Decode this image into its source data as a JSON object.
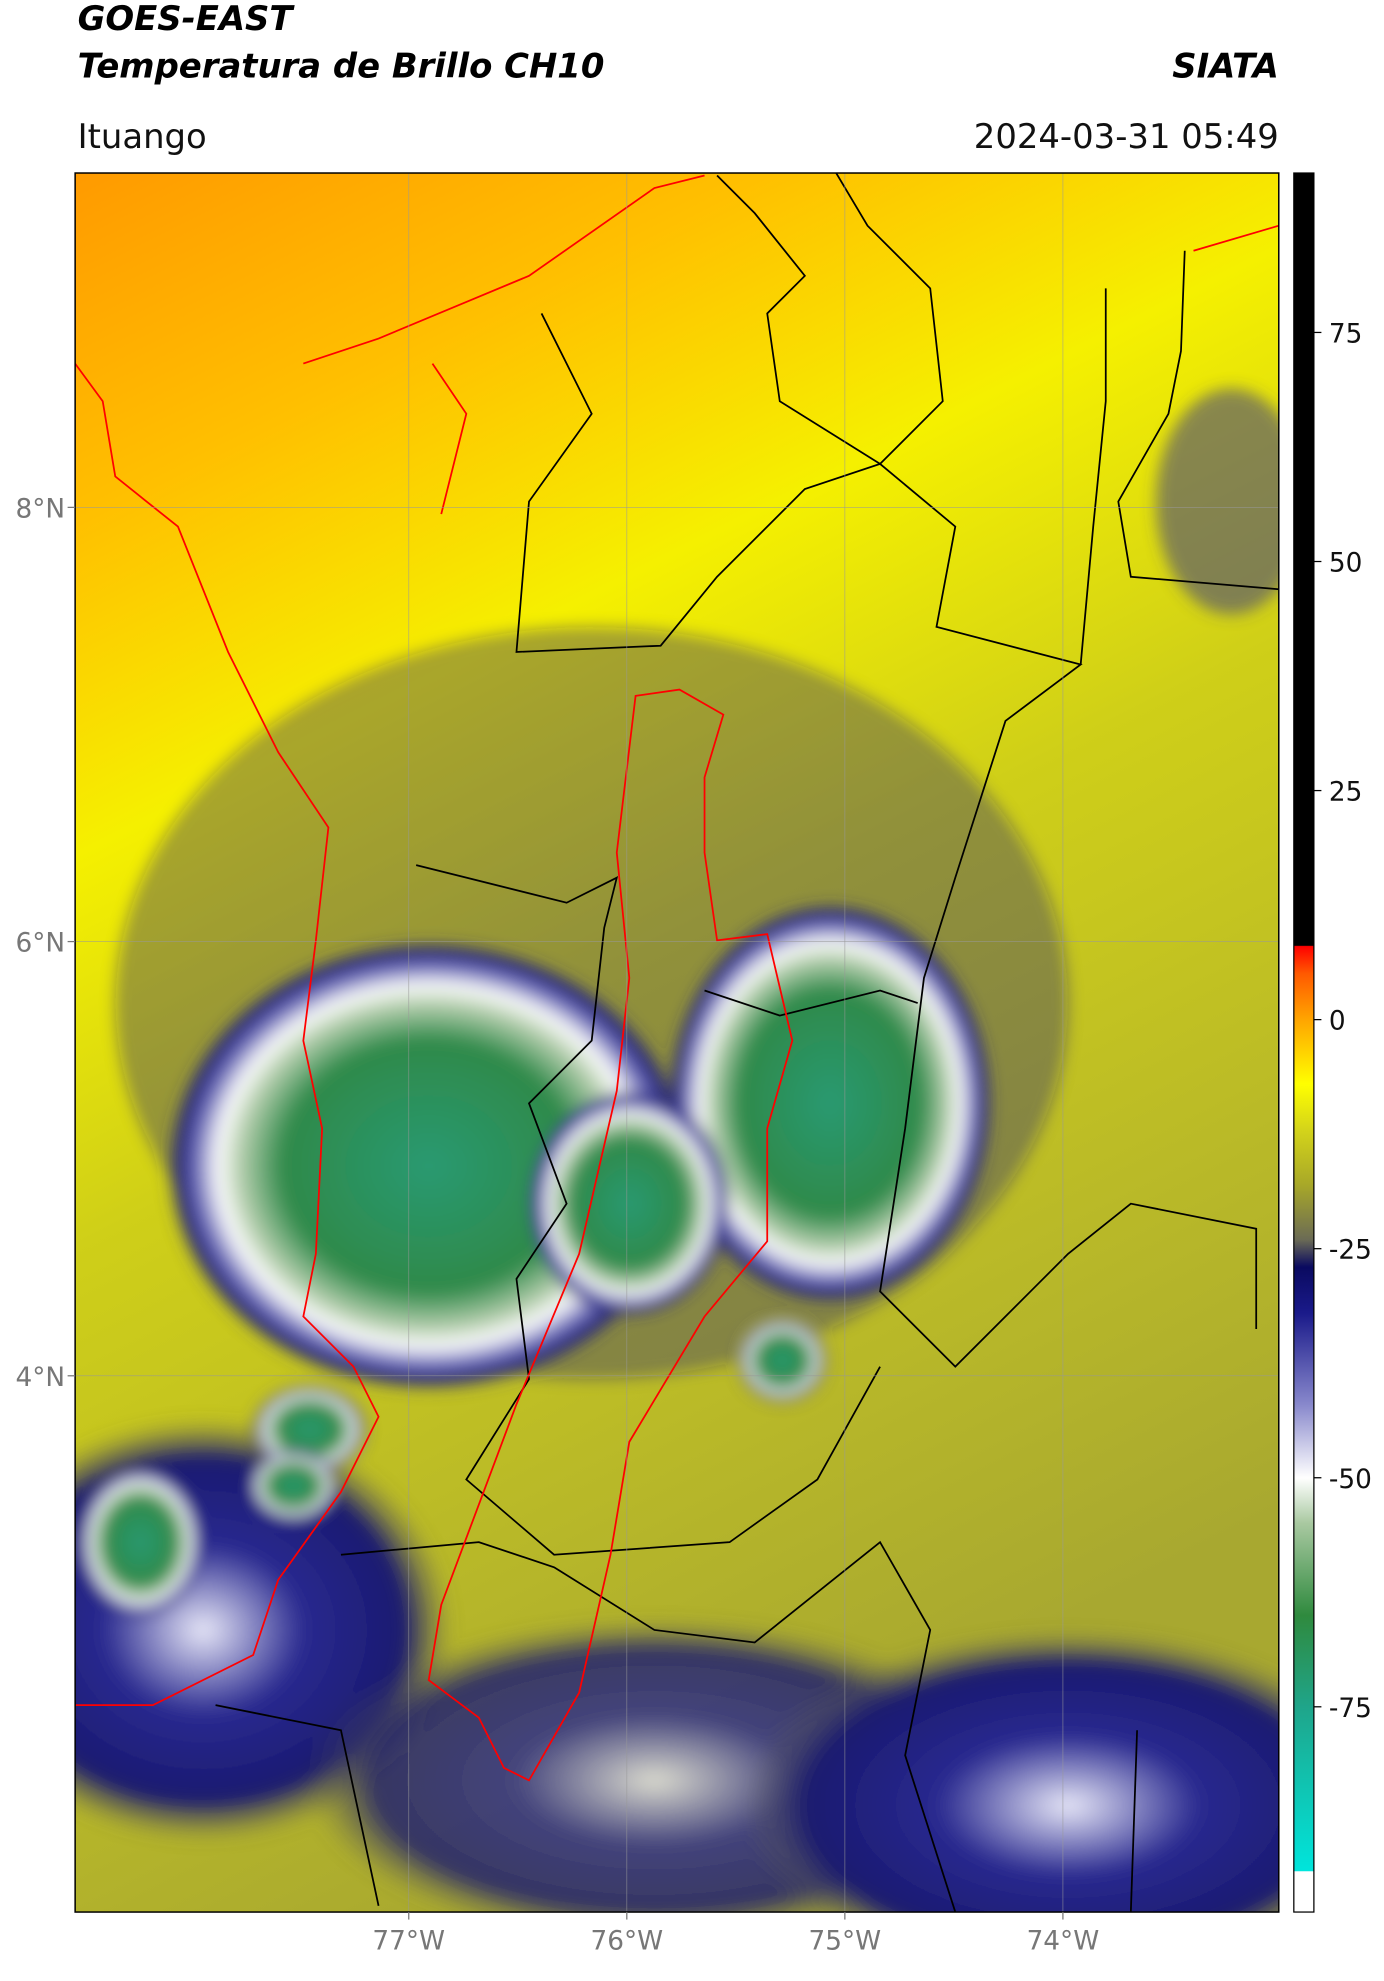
{
  "header": {
    "title": "GOES-EAST",
    "subtitle": "Temperatura de Brillo CH10",
    "source": "SIATA",
    "location": "Ituango",
    "timestamp": "2024-03-31 05:49"
  },
  "map": {
    "xlim": [
      -78.53,
      -73.01
    ],
    "ylim": [
      1.53,
      9.54
    ],
    "xticks": [
      {
        "value": -77,
        "label": "77°W"
      },
      {
        "value": -76,
        "label": "76°W"
      },
      {
        "value": -75,
        "label": "75°W"
      },
      {
        "value": -74,
        "label": "74°W"
      }
    ],
    "yticks": [
      {
        "value": 4,
        "label": "4°N"
      },
      {
        "value": 6,
        "label": "6°N"
      },
      {
        "value": 8,
        "label": "8°N"
      }
    ],
    "grid": true
  },
  "colorbar": {
    "lim": [
      -97.4,
      92.4
    ],
    "ticks": [
      -75,
      -50,
      -25,
      0,
      25,
      50,
      75
    ],
    "colormap": [
      {
        "value": -97.4,
        "color": "#ffffff"
      },
      {
        "value": -93,
        "color": "#ffffff"
      },
      {
        "value": -92.9,
        "color": "#00e5dc"
      },
      {
        "value": -75,
        "color": "#1fa58a"
      },
      {
        "value": -65,
        "color": "#2f8a3e"
      },
      {
        "value": -55,
        "color": "#a8c8a0"
      },
      {
        "value": -50,
        "color": "#ffffff"
      },
      {
        "value": -42,
        "color": "#8888cc"
      },
      {
        "value": -32,
        "color": "#1a1a8a"
      },
      {
        "value": -27,
        "color": "#0a0a60"
      },
      {
        "value": -24,
        "color": "#6b6b55"
      },
      {
        "value": -18,
        "color": "#a8a828"
      },
      {
        "value": -12,
        "color": "#d4d41a"
      },
      {
        "value": -7,
        "color": "#ffff00"
      },
      {
        "value": 0,
        "color": "#ffa500"
      },
      {
        "value": 5,
        "color": "#ff5a00"
      },
      {
        "value": 8,
        "color": "#ff0000"
      },
      {
        "value": 8.1,
        "color": "#000000"
      },
      {
        "value": 92.4,
        "color": "#000000"
      }
    ]
  }
}
